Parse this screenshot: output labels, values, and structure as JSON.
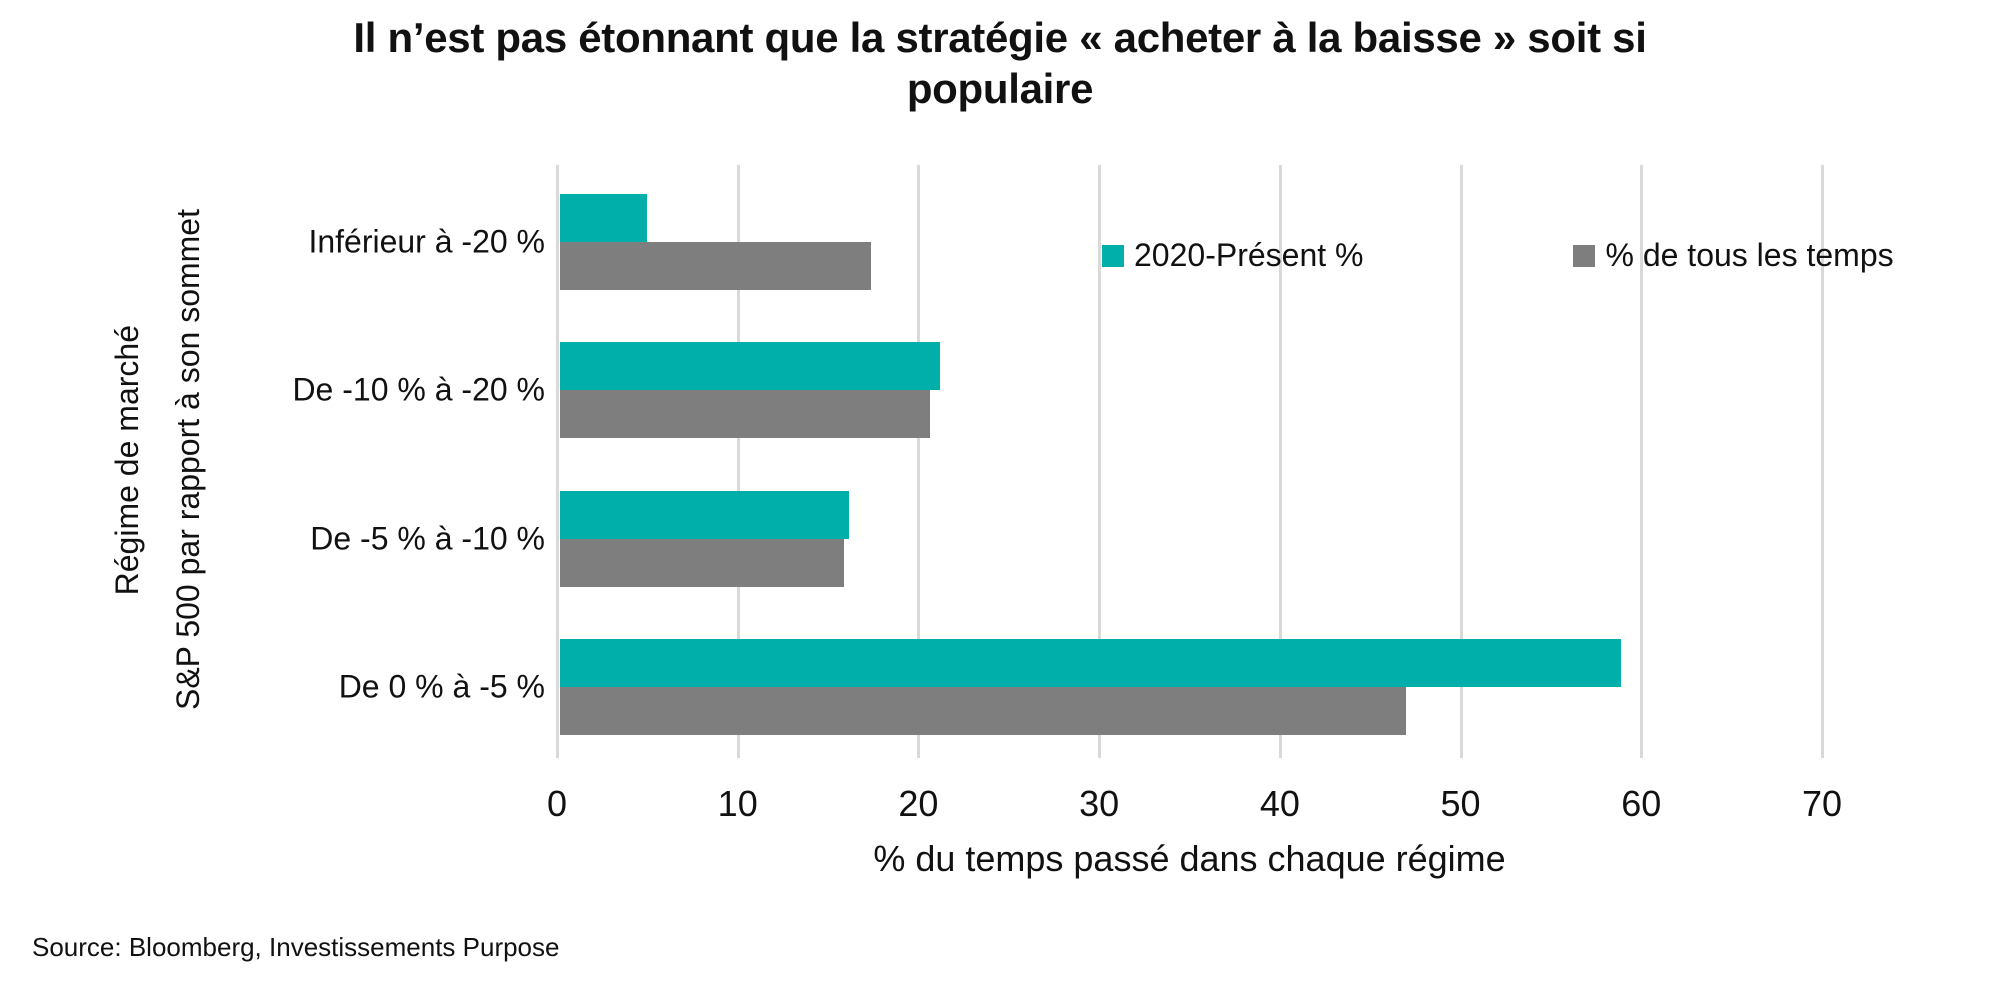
{
  "title_lines": [
    "Il n’est pas étonnant que la stratégie « acheter à la baisse » soit si",
    "populaire"
  ],
  "source": "Source: Bloomberg, Investissements Purpose",
  "colors": {
    "series_2020_present": "#00afa9",
    "series_all_time": "#7e7e7e",
    "gridline": "#d9d9d9",
    "text": "#111111",
    "background": "#ffffff"
  },
  "chart_data": {
    "type": "bar",
    "orientation": "horizontal",
    "title": "Il n’est pas étonnant que la stratégie « acheter à la baisse » soit si populaire",
    "categories": [
      "Inférieur à -20 %",
      "De -10 % à -20 %",
      "De -5 % à -10 %",
      "De 0 % à -5 %"
    ],
    "series": [
      {
        "name": "2020-Présent %",
        "color": "#00afa9",
        "values": [
          4.8,
          21.0,
          16.0,
          58.7
        ]
      },
      {
        "name": "% de tous les temps",
        "color": "#7e7e7e",
        "values": [
          17.2,
          20.5,
          15.7,
          46.8
        ]
      }
    ],
    "xlabel": "% du temps passé dans chaque régime",
    "ylabel_line1": "Régime de marché",
    "ylabel_line2": "S&P 500 par rapport à son sommet",
    "xlim": [
      0,
      70
    ],
    "xticks": [
      0,
      10,
      20,
      30,
      40,
      50,
      60,
      70
    ],
    "grid": "vertical",
    "legend_position": "inside-top-right"
  }
}
